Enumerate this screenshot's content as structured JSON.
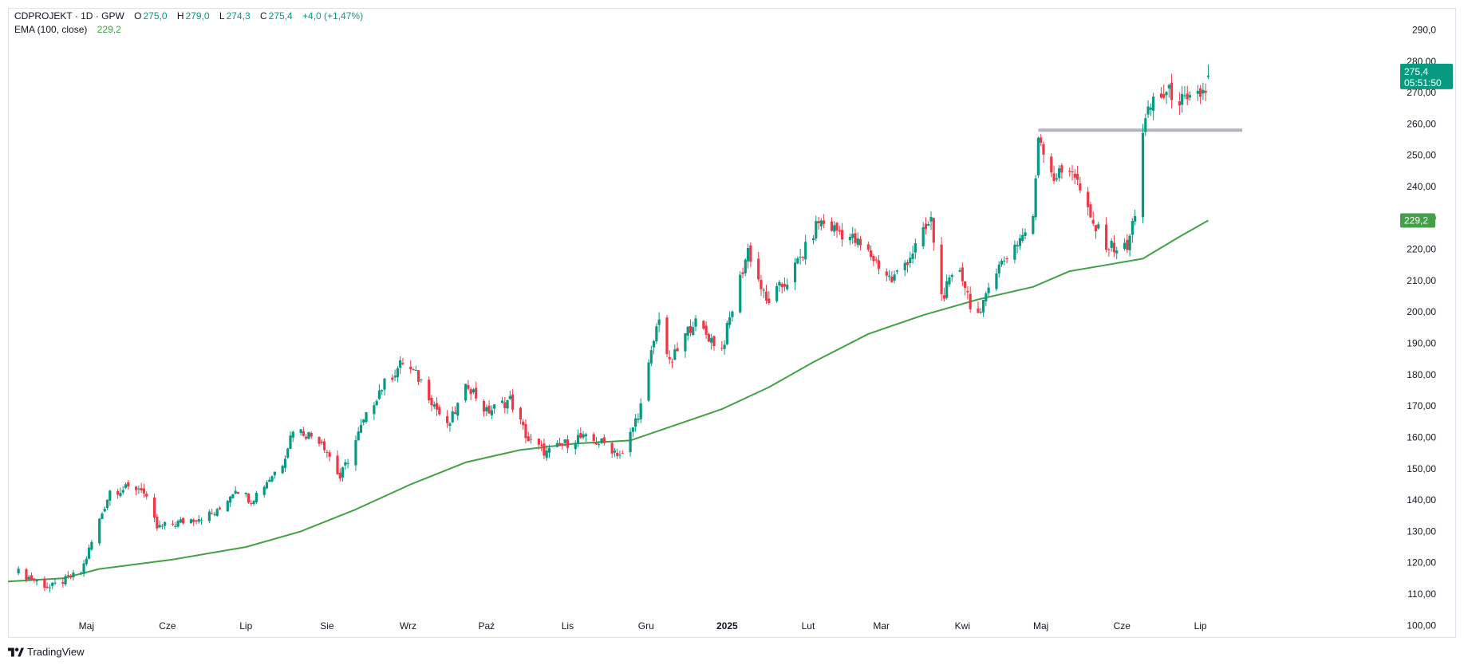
{
  "header": {
    "symbol": "CDPROJEKT · 1D · GPW",
    "open_label": "O",
    "open": "275,0",
    "high_label": "H",
    "high": "279,0",
    "low_label": "L",
    "low": "274,3",
    "close_label": "C",
    "close": "275,4",
    "change": "+4,0 (+1,47%)",
    "indicator_name": "EMA (100, close)",
    "indicator_value": "229,2"
  },
  "price_badge": {
    "value": "275,4",
    "countdown": "05:51:50",
    "color": "#089981"
  },
  "ema_badge": {
    "value": "229,2",
    "color": "#43a047"
  },
  "brand": {
    "name": "TradingView",
    "icon": "tradingview-logo-icon"
  },
  "colors": {
    "up": "#089981",
    "down": "#f23645",
    "ema": "#43a047",
    "level_line": "#b2b5be"
  },
  "chart_data": {
    "type": "candlestick",
    "y_axis": {
      "ticks": [
        "100,00",
        "110,00",
        "120,00",
        "130,00",
        "140,00",
        "150,00",
        "160,00",
        "170,00",
        "180,00",
        "190,00",
        "200,00",
        "210,00",
        "220,00",
        "230,00",
        "240,00",
        "250,00",
        "260,00",
        "270,00",
        "280,00",
        "290,0"
      ],
      "range": [
        96,
        297
      ]
    },
    "x_axis": {
      "ticks": [
        "Maj",
        "Cze",
        "Lip",
        "Sie",
        "Wrz",
        "Paź",
        "Lis",
        "Gru",
        "2025",
        "Lut",
        "Mar",
        "Kwi",
        "Maj",
        "Cze",
        "Lip"
      ],
      "bold_ticks": [
        "2025"
      ]
    },
    "horizontal_level": {
      "value": 258
    },
    "ema_period": 100,
    "series": [
      {
        "name": "CDPROJEKT",
        "kind": "ohlc",
        "key_points": [
          {
            "date": "2024-04-05",
            "close": 117
          },
          {
            "date": "2024-04-17",
            "close": 112
          },
          {
            "date": "2024-04-29",
            "close": 117
          },
          {
            "date": "2024-05-10",
            "close": 143
          },
          {
            "date": "2024-05-22",
            "close": 144
          },
          {
            "date": "2024-05-28",
            "close": 131
          },
          {
            "date": "2024-06-20",
            "close": 136
          },
          {
            "date": "2024-06-27",
            "close": 144
          },
          {
            "date": "2024-07-03",
            "close": 140
          },
          {
            "date": "2024-07-15",
            "close": 152
          },
          {
            "date": "2024-07-19",
            "close": 163
          },
          {
            "date": "2024-07-30",
            "close": 159
          },
          {
            "date": "2024-08-06",
            "close": 147
          },
          {
            "date": "2024-08-14",
            "close": 163
          },
          {
            "date": "2024-08-21",
            "close": 175
          },
          {
            "date": "2024-08-30",
            "close": 184
          },
          {
            "date": "2024-09-06",
            "close": 178
          },
          {
            "date": "2024-09-16",
            "close": 163
          },
          {
            "date": "2024-09-24",
            "close": 177
          },
          {
            "date": "2024-10-01",
            "close": 168
          },
          {
            "date": "2024-10-10",
            "close": 172
          },
          {
            "date": "2024-10-17",
            "close": 159
          },
          {
            "date": "2024-10-24",
            "close": 155
          },
          {
            "date": "2024-11-05",
            "close": 160
          },
          {
            "date": "2024-11-15",
            "close": 158
          },
          {
            "date": "2024-11-22",
            "close": 154
          },
          {
            "date": "2024-11-29",
            "close": 170
          },
          {
            "date": "2024-12-06",
            "close": 199
          },
          {
            "date": "2024-12-10",
            "close": 183
          },
          {
            "date": "2024-12-19",
            "close": 197
          },
          {
            "date": "2024-12-30",
            "close": 188
          },
          {
            "date": "2025-01-03",
            "close": 201
          },
          {
            "date": "2025-01-09",
            "close": 220
          },
          {
            "date": "2025-01-16",
            "close": 203
          },
          {
            "date": "2025-01-24",
            "close": 210
          },
          {
            "date": "2025-01-31",
            "close": 220
          },
          {
            "date": "2025-02-05",
            "close": 229
          },
          {
            "date": "2025-02-17",
            "close": 224
          },
          {
            "date": "2025-02-25",
            "close": 218
          },
          {
            "date": "2025-03-05",
            "close": 210
          },
          {
            "date": "2025-03-12",
            "close": 218
          },
          {
            "date": "2025-03-20",
            "close": 229
          },
          {
            "date": "2025-03-24",
            "close": 205
          },
          {
            "date": "2025-03-31",
            "close": 214
          },
          {
            "date": "2025-04-04",
            "close": 203
          },
          {
            "date": "2025-04-08",
            "close": 198
          },
          {
            "date": "2025-04-11",
            "close": 210
          },
          {
            "date": "2025-04-18",
            "close": 218
          },
          {
            "date": "2025-04-28",
            "close": 229
          },
          {
            "date": "2025-04-30",
            "close": 257
          },
          {
            "date": "2025-05-06",
            "close": 243
          },
          {
            "date": "2025-05-13",
            "close": 246
          },
          {
            "date": "2025-05-20",
            "close": 229
          },
          {
            "date": "2025-05-27",
            "close": 221
          },
          {
            "date": "2025-06-03",
            "close": 220
          },
          {
            "date": "2025-06-06",
            "close": 232
          },
          {
            "date": "2025-06-09",
            "close": 258
          },
          {
            "date": "2025-06-13",
            "close": 268
          },
          {
            "date": "2025-06-20",
            "close": 270
          },
          {
            "date": "2025-06-26",
            "close": 266
          },
          {
            "date": "2025-07-03",
            "close": 271
          },
          {
            "date": "2025-07-04",
            "close": 275.4
          }
        ]
      },
      {
        "name": "EMA (100, close)",
        "kind": "line",
        "key_points": [
          {
            "date": "2024-04-01",
            "value": 114
          },
          {
            "date": "2024-04-22",
            "value": 115
          },
          {
            "date": "2024-05-06",
            "value": 118
          },
          {
            "date": "2024-06-03",
            "value": 121
          },
          {
            "date": "2024-07-01",
            "value": 125
          },
          {
            "date": "2024-07-22",
            "value": 130
          },
          {
            "date": "2024-08-12",
            "value": 137
          },
          {
            "date": "2024-09-02",
            "value": 145
          },
          {
            "date": "2024-09-23",
            "value": 152
          },
          {
            "date": "2024-10-14",
            "value": 156
          },
          {
            "date": "2024-11-04",
            "value": 158
          },
          {
            "date": "2024-11-25",
            "value": 159
          },
          {
            "date": "2024-12-09",
            "value": 163
          },
          {
            "date": "2024-12-30",
            "value": 169
          },
          {
            "date": "2025-01-17",
            "value": 176
          },
          {
            "date": "2025-02-03",
            "value": 184
          },
          {
            "date": "2025-02-24",
            "value": 193
          },
          {
            "date": "2025-03-17",
            "value": 199
          },
          {
            "date": "2025-04-07",
            "value": 204
          },
          {
            "date": "2025-04-28",
            "value": 208
          },
          {
            "date": "2025-05-12",
            "value": 213
          },
          {
            "date": "2025-05-26",
            "value": 215
          },
          {
            "date": "2025-06-09",
            "value": 217
          },
          {
            "date": "2025-06-23",
            "value": 224
          },
          {
            "date": "2025-07-04",
            "value": 229.2
          }
        ]
      }
    ]
  }
}
